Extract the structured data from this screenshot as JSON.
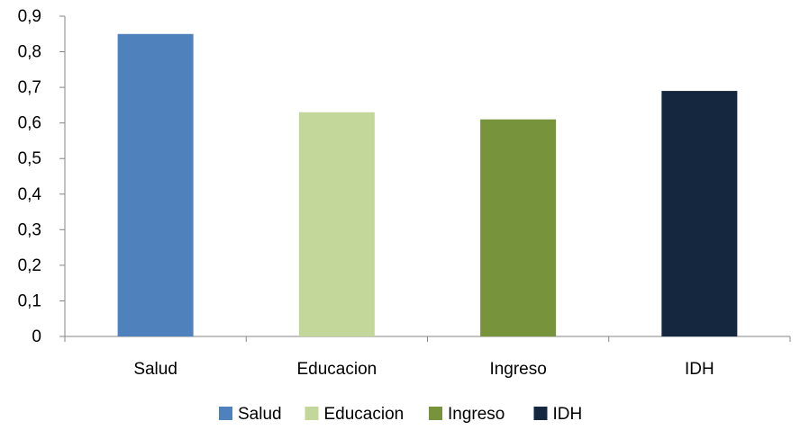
{
  "chart_data": {
    "type": "bar",
    "title": "",
    "xlabel": "",
    "ylabel": "",
    "categories": [
      "Salud",
      "Educacion",
      "Ingreso",
      "IDH"
    ],
    "values": [
      0.85,
      0.63,
      0.61,
      0.69
    ],
    "colors": [
      "#4f81bd",
      "#c4d79b",
      "#77933c",
      "#14273f"
    ],
    "ylim": [
      0,
      0.9
    ],
    "y_ticks": [
      0,
      0.1,
      0.2,
      0.3,
      0.4,
      0.5,
      0.6,
      0.7,
      0.8,
      0.9
    ],
    "y_tick_labels": [
      "0",
      "0,1",
      "0,2",
      "0,3",
      "0,4",
      "0,5",
      "0,6",
      "0,7",
      "0,8",
      "0,9"
    ],
    "grid": false,
    "legend": {
      "placement": "bottom",
      "entries": [
        "Salud",
        "Educacion",
        "Ingreso",
        "IDH"
      ]
    }
  }
}
